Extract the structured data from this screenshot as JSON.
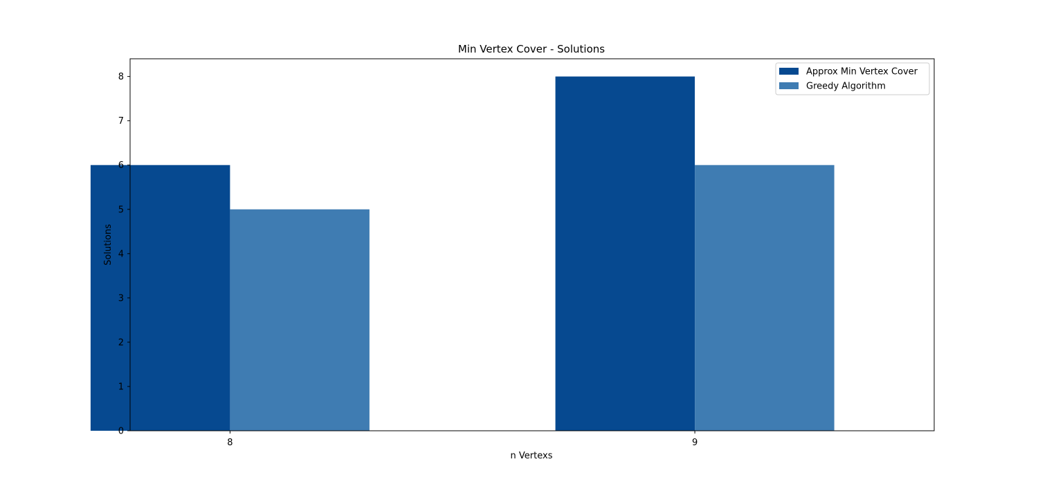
{
  "chart_data": {
    "type": "bar",
    "title": "Min Vertex Cover - Solutions",
    "xlabel": "n Vertexs",
    "ylabel": "Solutions",
    "categories": [
      "8",
      "9"
    ],
    "series": [
      {
        "name": "Approx Min Vertex Cover",
        "values": [
          6,
          8
        ],
        "color": "#064990"
      },
      {
        "name": "Greedy Algorithm",
        "values": [
          5,
          6
        ],
        "color": "#3f7cb2"
      }
    ],
    "ylim": [
      0,
      8.4
    ],
    "yticks": [
      0,
      1,
      2,
      3,
      4,
      5,
      6,
      7,
      8
    ],
    "grid": false,
    "legend_position": "top-right"
  }
}
